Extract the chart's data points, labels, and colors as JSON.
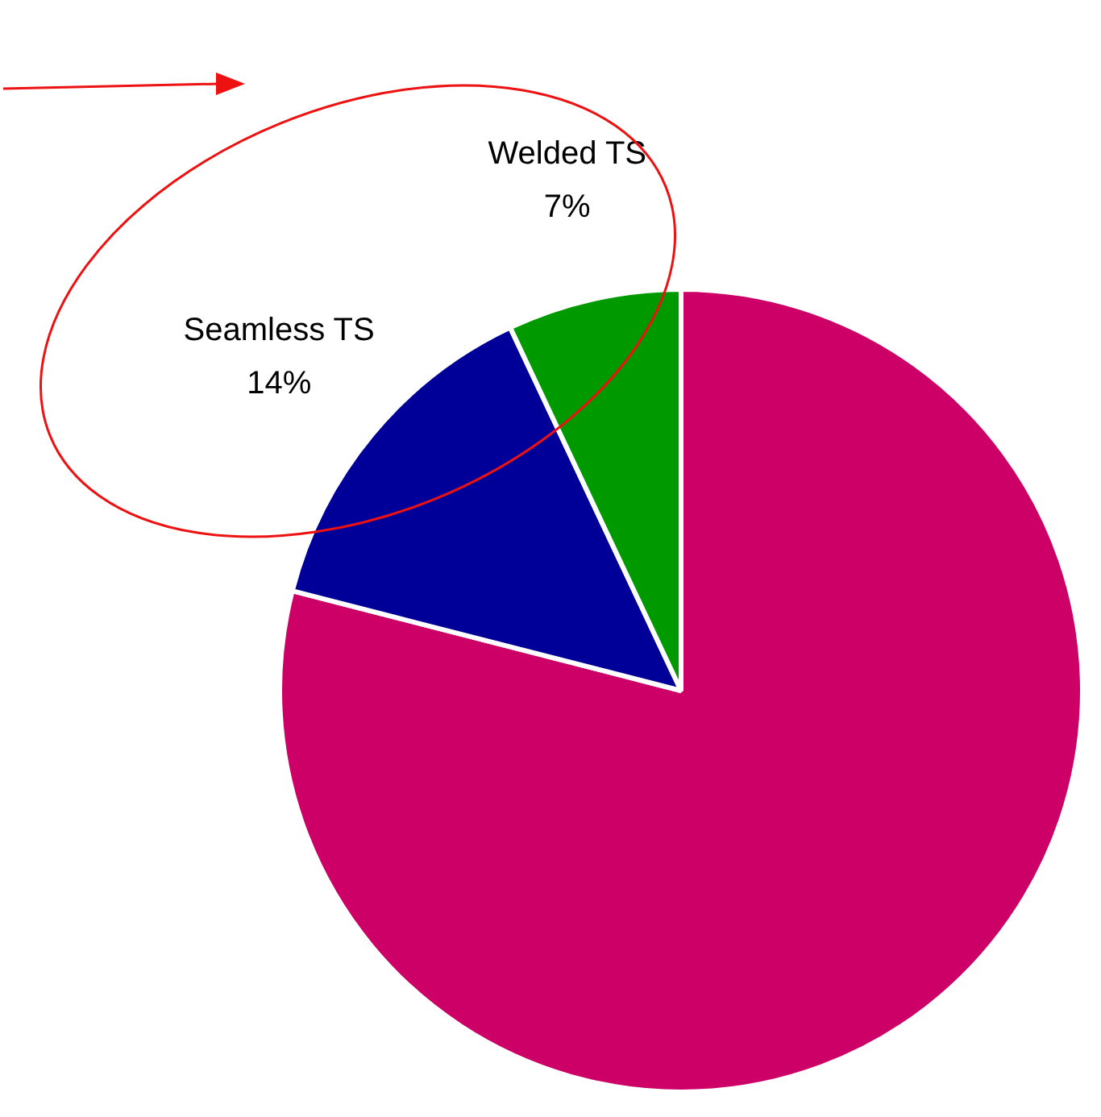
{
  "chart_data": {
    "type": "pie",
    "categories": [
      null,
      "Seamless TS",
      "Welded TS"
    ],
    "values": [
      79,
      14,
      7
    ],
    "colors": [
      "#cc0066",
      "#000099",
      "#009900"
    ],
    "value_labels": [
      null,
      "14%",
      "7%"
    ]
  }
}
